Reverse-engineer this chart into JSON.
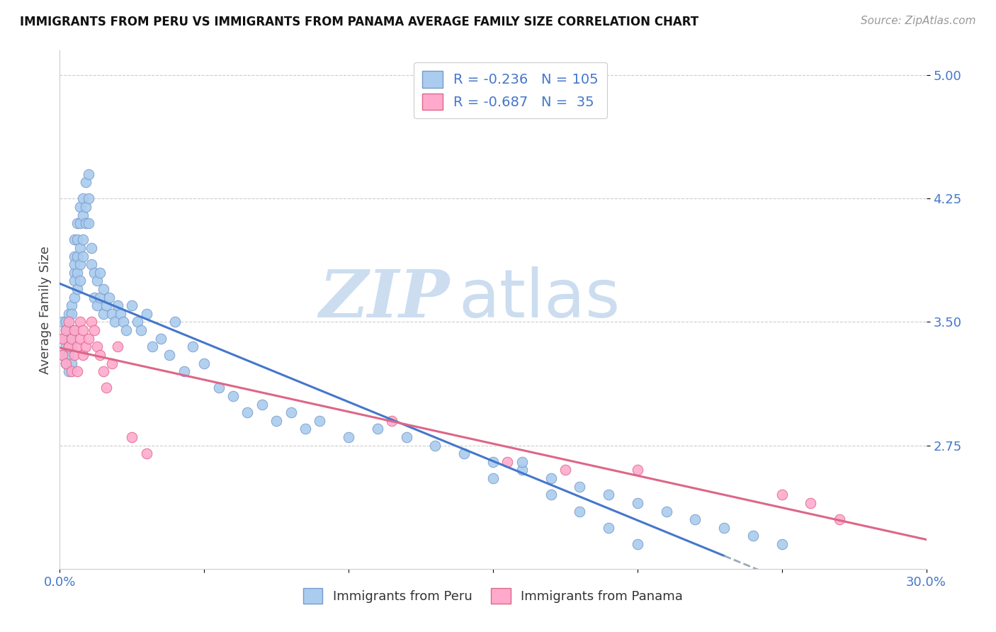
{
  "title": "IMMIGRANTS FROM PERU VS IMMIGRANTS FROM PANAMA AVERAGE FAMILY SIZE CORRELATION CHART",
  "source": "Source: ZipAtlas.com",
  "ylabel": "Average Family Size",
  "yticks": [
    2.75,
    3.5,
    4.25,
    5.0
  ],
  "xlim": [
    0.0,
    0.3
  ],
  "ylim": [
    2.0,
    5.15
  ],
  "peru_color": "#aaccee",
  "peru_color_edge": "#7799cc",
  "panama_color": "#ffaacc",
  "panama_color_edge": "#dd6688",
  "peru_R": -0.236,
  "peru_N": 105,
  "panama_R": -0.687,
  "panama_N": 35,
  "trend_blue": "#4477cc",
  "trend_pink": "#dd6688",
  "trend_dashed": "#99aabb",
  "text_blue": "#4477cc",
  "watermark_color": "#ccddf0",
  "peru_x": [
    0.001,
    0.001,
    0.001,
    0.002,
    0.002,
    0.002,
    0.002,
    0.002,
    0.003,
    0.003,
    0.003,
    0.003,
    0.003,
    0.003,
    0.004,
    0.004,
    0.004,
    0.004,
    0.004,
    0.004,
    0.005,
    0.005,
    0.005,
    0.005,
    0.005,
    0.005,
    0.006,
    0.006,
    0.006,
    0.006,
    0.006,
    0.007,
    0.007,
    0.007,
    0.007,
    0.007,
    0.008,
    0.008,
    0.008,
    0.008,
    0.009,
    0.009,
    0.009,
    0.01,
    0.01,
    0.01,
    0.011,
    0.011,
    0.012,
    0.012,
    0.013,
    0.013,
    0.014,
    0.014,
    0.015,
    0.015,
    0.016,
    0.017,
    0.018,
    0.019,
    0.02,
    0.021,
    0.022,
    0.023,
    0.025,
    0.027,
    0.028,
    0.03,
    0.032,
    0.035,
    0.038,
    0.04,
    0.043,
    0.046,
    0.05,
    0.055,
    0.06,
    0.065,
    0.07,
    0.075,
    0.08,
    0.085,
    0.09,
    0.1,
    0.11,
    0.12,
    0.13,
    0.14,
    0.15,
    0.16,
    0.17,
    0.18,
    0.19,
    0.2,
    0.21,
    0.22,
    0.23,
    0.24,
    0.25,
    0.15,
    0.16,
    0.17,
    0.18,
    0.19,
    0.2
  ],
  "peru_y": [
    3.4,
    3.5,
    3.3,
    3.45,
    3.35,
    3.5,
    3.25,
    3.4,
    3.45,
    3.35,
    3.55,
    3.3,
    3.2,
    3.4,
    3.6,
    3.45,
    3.35,
    3.55,
    3.25,
    3.4,
    3.8,
    3.9,
    4.0,
    3.85,
    3.75,
    3.65,
    4.1,
    4.0,
    3.9,
    3.8,
    3.7,
    4.2,
    4.1,
    3.95,
    3.85,
    3.75,
    4.25,
    4.15,
    4.0,
    3.9,
    4.35,
    4.2,
    4.1,
    4.4,
    4.25,
    4.1,
    3.85,
    3.95,
    3.8,
    3.65,
    3.75,
    3.6,
    3.65,
    3.8,
    3.7,
    3.55,
    3.6,
    3.65,
    3.55,
    3.5,
    3.6,
    3.55,
    3.5,
    3.45,
    3.6,
    3.5,
    3.45,
    3.55,
    3.35,
    3.4,
    3.3,
    3.5,
    3.2,
    3.35,
    3.25,
    3.1,
    3.05,
    2.95,
    3.0,
    2.9,
    2.95,
    2.85,
    2.9,
    2.8,
    2.85,
    2.8,
    2.75,
    2.7,
    2.65,
    2.6,
    2.55,
    2.5,
    2.45,
    2.4,
    2.35,
    2.3,
    2.25,
    2.2,
    2.15,
    2.55,
    2.65,
    2.45,
    2.35,
    2.25,
    2.15
  ],
  "panama_x": [
    0.001,
    0.001,
    0.002,
    0.002,
    0.003,
    0.003,
    0.004,
    0.004,
    0.005,
    0.005,
    0.006,
    0.006,
    0.007,
    0.007,
    0.008,
    0.008,
    0.009,
    0.01,
    0.011,
    0.012,
    0.013,
    0.014,
    0.015,
    0.016,
    0.018,
    0.02,
    0.025,
    0.03,
    0.115,
    0.155,
    0.175,
    0.2,
    0.25,
    0.26,
    0.27
  ],
  "panama_y": [
    3.4,
    3.3,
    3.45,
    3.25,
    3.5,
    3.35,
    3.4,
    3.2,
    3.45,
    3.3,
    3.35,
    3.2,
    3.5,
    3.4,
    3.45,
    3.3,
    3.35,
    3.4,
    3.5,
    3.45,
    3.35,
    3.3,
    3.2,
    3.1,
    3.25,
    3.35,
    2.8,
    2.7,
    2.9,
    2.65,
    2.6,
    2.6,
    2.45,
    2.4,
    2.3
  ]
}
